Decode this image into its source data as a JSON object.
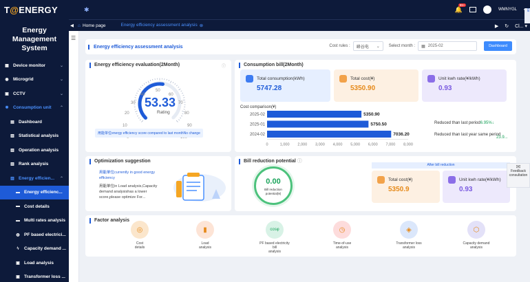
{
  "brand": {
    "logo_a": "T",
    "logo_accent": "@",
    "logo_b": "ENERGY",
    "system_title": "Energy Management System"
  },
  "sidebar": {
    "items": [
      {
        "label": "Device monitor"
      },
      {
        "label": "Microgrid"
      },
      {
        "label": "CCTV"
      },
      {
        "label": "Consumption unit"
      },
      {
        "label": "Dashboard"
      },
      {
        "label": "Statistical analysis"
      },
      {
        "label": "Operation analysis"
      },
      {
        "label": "Rank analysis"
      },
      {
        "label": "Energy efficien..."
      },
      {
        "label": "Energy efficienc..."
      },
      {
        "label": "Cost details"
      },
      {
        "label": "Multi rates analysis"
      },
      {
        "label": "PF based electrici..."
      },
      {
        "label": "Capacity demand ..."
      },
      {
        "label": "Load analysis"
      },
      {
        "label": "Transformer loss ..."
      }
    ]
  },
  "topbar": {
    "badge": "99+",
    "user": "WMNYGL",
    "edge": "ce"
  },
  "tabs": {
    "home": "Home page",
    "active": "Energy efficiency assessment analysis",
    "right_label": "Cl..."
  },
  "header": {
    "title": "Energy efficiency assessment analysis",
    "cost_rules_label": "Cost rules :",
    "cost_rules_value": "峰谷电",
    "month_label": "Select month :",
    "month_value": "2025-02",
    "dashboard_btn": "Dashboard"
  },
  "evaluation": {
    "title": "Energy efficiency evaluation(2Month)",
    "score": "53.33",
    "score_label": "Rating",
    "score_fraction": 0.5333,
    "ticks": [
      "0",
      "10",
      "20",
      "30",
      "40",
      "50",
      "60",
      "70",
      "80",
      "90",
      "100"
    ],
    "note": "用能单位energy efficiency score compared to last monthNo change"
  },
  "bill": {
    "title": "Consumption bill(2Month)",
    "total_consumption_label": "Total consumption(kWh)",
    "total_consumption": "5747.28",
    "total_cost_label": "Total cost(¥)",
    "total_cost": "5350.90",
    "unit_rate_label": "Unit kwh rate(¥/kWh)",
    "unit_rate": "0.93",
    "comparison_label": "Cost comparison(¥)",
    "reduced_last_period_label": "Reduced than last period",
    "reduced_last_period": "6.95%",
    "reduced_last_year_label": "Reduced than last year same period",
    "reduced_last_year": "23.9..."
  },
  "chart_data": {
    "type": "bar",
    "orientation": "horizontal",
    "title": "Cost comparison(¥)",
    "categories": [
      "2025-02",
      "2025-01",
      "2024-02"
    ],
    "values": [
      5350.9,
      5750.5,
      7036.2
    ],
    "value_labels": [
      "5350.90",
      "5750.50",
      "7036.20"
    ],
    "xlim": [
      0,
      8000
    ],
    "xticks": [
      "0",
      "1,000",
      "2,000",
      "3,000",
      "4,000",
      "5,000",
      "6,000",
      "7,000",
      "8,000"
    ],
    "bar_color": "#1e5bd8"
  },
  "optimization": {
    "title": "Optimization suggestion",
    "line1": "用能单位currently in good energy efficiency",
    "line2": "用能单位in Load analysis,Capacity demand analysishas a lower score,please optimize For..."
  },
  "reduction": {
    "title": "Bill reduction potential",
    "value": "0.00",
    "value_label": "Bill reduction potential(¥)",
    "after_label": "After bill reduction",
    "total_cost_label": "Total cost(¥)",
    "total_cost": "5350.9",
    "unit_rate_label": "Unit kwh rate(¥/kWh)",
    "unit_rate": "0.93"
  },
  "factors": {
    "title": "Factor analysis",
    "items": [
      {
        "line1": "Cost",
        "line2": "details",
        "color": "#fbe6cc",
        "badge": ""
      },
      {
        "line1": "Load",
        "line2": "analysis",
        "color": "#fde4d6",
        "badge": ""
      },
      {
        "line1": "PF based electricity bill",
        "line2": "analysis",
        "color": "#d8f2e6",
        "badge": "cosφ"
      },
      {
        "line1": "Time-of-use",
        "line2": "analysis",
        "color": "#fddcdc",
        "badge": ""
      },
      {
        "line1": "Transformer loss",
        "line2": "analysis",
        "color": "#dbe7fb",
        "badge": ""
      },
      {
        "line1": "Capacity demand",
        "line2": "analysis",
        "color": "#e3e1f8",
        "badge": ""
      }
    ]
  },
  "feedback": {
    "line1": "Feedback",
    "line2": "consultation"
  }
}
